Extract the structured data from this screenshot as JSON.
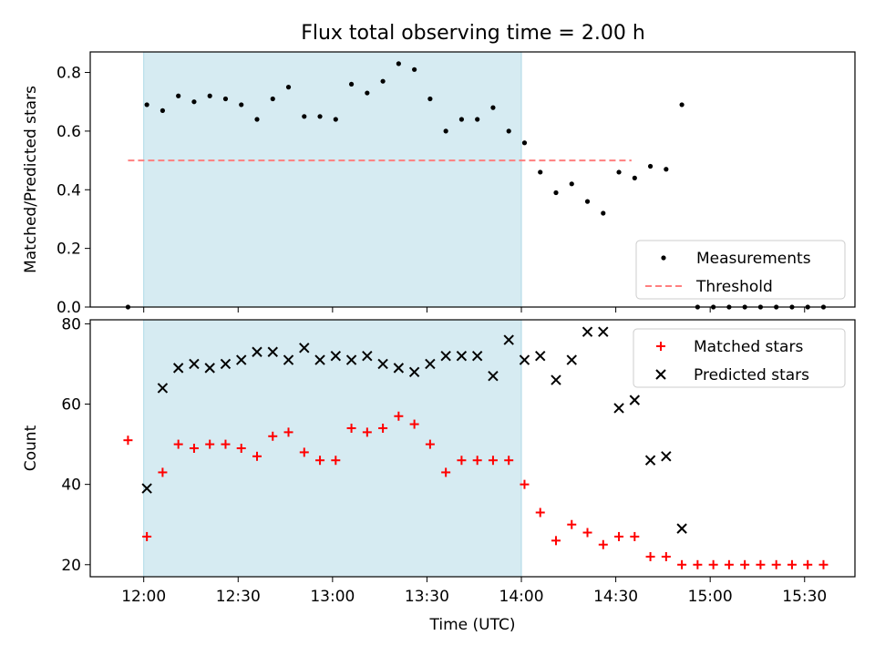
{
  "figure": {
    "title": "Flux total observing time = 2.00 h"
  },
  "colors": {
    "shade": "#add8e6",
    "threshold": "#ff7f7f",
    "measurement": "#000000",
    "matched": "#ff0000",
    "predicted": "#000000"
  },
  "chart_data": [
    {
      "type": "scatter",
      "title": "Flux total observing time = 2.00 h",
      "xlabel": "",
      "ylabel": "Matched/Predicted stars",
      "xlim": [
        "11:43",
        "15:46"
      ],
      "ylim": [
        0,
        0.87
      ],
      "yticks": [
        0.0,
        0.2,
        0.4,
        0.6,
        0.8
      ],
      "ytick_labels": [
        "0.0",
        "0.2",
        "0.4",
        "0.6",
        "0.8"
      ],
      "shaded_interval": [
        "12:00",
        "14:00"
      ],
      "legend_position": "bottom-right",
      "threshold": {
        "name": "Threshold",
        "y": 0.5,
        "x": [
          "11:55",
          "14:35"
        ],
        "style": "dashed"
      },
      "series": [
        {
          "name": "Measurements",
          "marker": "dot",
          "points": [
            [
              "11:55",
              0.0
            ],
            [
              "12:01",
              0.69
            ],
            [
              "12:06",
              0.67
            ],
            [
              "12:11",
              0.72
            ],
            [
              "12:16",
              0.7
            ],
            [
              "12:21",
              0.72
            ],
            [
              "12:26",
              0.71
            ],
            [
              "12:31",
              0.69
            ],
            [
              "12:36",
              0.64
            ],
            [
              "12:41",
              0.71
            ],
            [
              "12:46",
              0.75
            ],
            [
              "12:51",
              0.65
            ],
            [
              "12:56",
              0.65
            ],
            [
              "13:01",
              0.64
            ],
            [
              "13:06",
              0.76
            ],
            [
              "13:11",
              0.73
            ],
            [
              "13:16",
              0.77
            ],
            [
              "13:21",
              0.83
            ],
            [
              "13:26",
              0.81
            ],
            [
              "13:31",
              0.71
            ],
            [
              "13:36",
              0.6
            ],
            [
              "13:41",
              0.64
            ],
            [
              "13:46",
              0.64
            ],
            [
              "13:51",
              0.68
            ],
            [
              "13:56",
              0.6
            ],
            [
              "14:01",
              0.56
            ],
            [
              "14:06",
              0.46
            ],
            [
              "14:11",
              0.39
            ],
            [
              "14:16",
              0.42
            ],
            [
              "14:21",
              0.36
            ],
            [
              "14:26",
              0.32
            ],
            [
              "14:31",
              0.46
            ],
            [
              "14:36",
              0.44
            ],
            [
              "14:41",
              0.48
            ],
            [
              "14:46",
              0.47
            ],
            [
              "14:51",
              0.69
            ],
            [
              "14:56",
              0.0
            ],
            [
              "15:01",
              0.0
            ],
            [
              "15:06",
              0.0
            ],
            [
              "15:11",
              0.0
            ],
            [
              "15:16",
              0.0
            ],
            [
              "15:21",
              0.0
            ],
            [
              "15:26",
              0.0
            ],
            [
              "15:31",
              0.0
            ],
            [
              "15:36",
              0.0
            ]
          ]
        }
      ]
    },
    {
      "type": "scatter",
      "title": "",
      "xlabel": "Time (UTC)",
      "ylabel": "Count",
      "xlim": [
        "11:43",
        "15:46"
      ],
      "ylim": [
        17,
        81
      ],
      "yticks": [
        20,
        40,
        60,
        80
      ],
      "ytick_labels": [
        "20",
        "40",
        "60",
        "80"
      ],
      "xticks": [
        "12:00",
        "12:30",
        "13:00",
        "13:30",
        "14:00",
        "14:30",
        "15:00",
        "15:30"
      ],
      "xtick_labels": [
        "12:00",
        "12:30",
        "13:00",
        "13:30",
        "14:00",
        "14:30",
        "15:00",
        "15:30"
      ],
      "shaded_interval": [
        "12:00",
        "14:00"
      ],
      "legend_position": "top-right",
      "series": [
        {
          "name": "Matched stars",
          "marker": "plus",
          "points": [
            [
              "11:55",
              51
            ],
            [
              "12:01",
              27
            ],
            [
              "12:06",
              43
            ],
            [
              "12:11",
              50
            ],
            [
              "12:16",
              49
            ],
            [
              "12:21",
              50
            ],
            [
              "12:26",
              50
            ],
            [
              "12:31",
              49
            ],
            [
              "12:36",
              47
            ],
            [
              "12:41",
              52
            ],
            [
              "12:46",
              53
            ],
            [
              "12:51",
              48
            ],
            [
              "12:56",
              46
            ],
            [
              "13:01",
              46
            ],
            [
              "13:06",
              54
            ],
            [
              "13:11",
              53
            ],
            [
              "13:16",
              54
            ],
            [
              "13:21",
              57
            ],
            [
              "13:26",
              55
            ],
            [
              "13:31",
              50
            ],
            [
              "13:36",
              43
            ],
            [
              "13:41",
              46
            ],
            [
              "13:46",
              46
            ],
            [
              "13:51",
              46
            ],
            [
              "13:56",
              46
            ],
            [
              "14:01",
              40
            ],
            [
              "14:06",
              33
            ],
            [
              "14:11",
              26
            ],
            [
              "14:16",
              30
            ],
            [
              "14:21",
              28
            ],
            [
              "14:26",
              25
            ],
            [
              "14:31",
              27
            ],
            [
              "14:36",
              27
            ],
            [
              "14:41",
              22
            ],
            [
              "14:46",
              22
            ],
            [
              "14:51",
              20
            ],
            [
              "14:56",
              20
            ],
            [
              "15:01",
              20
            ],
            [
              "15:06",
              20
            ],
            [
              "15:11",
              20
            ],
            [
              "15:16",
              20
            ],
            [
              "15:21",
              20
            ],
            [
              "15:26",
              20
            ],
            [
              "15:31",
              20
            ],
            [
              "15:36",
              20
            ]
          ]
        },
        {
          "name": "Predicted stars",
          "marker": "x",
          "points": [
            [
              "12:01",
              39
            ],
            [
              "12:06",
              64
            ],
            [
              "12:11",
              69
            ],
            [
              "12:16",
              70
            ],
            [
              "12:21",
              69
            ],
            [
              "12:26",
              70
            ],
            [
              "12:31",
              71
            ],
            [
              "12:36",
              73
            ],
            [
              "12:41",
              73
            ],
            [
              "12:46",
              71
            ],
            [
              "12:51",
              74
            ],
            [
              "12:56",
              71
            ],
            [
              "13:01",
              72
            ],
            [
              "13:06",
              71
            ],
            [
              "13:11",
              72
            ],
            [
              "13:16",
              70
            ],
            [
              "13:21",
              69
            ],
            [
              "13:26",
              68
            ],
            [
              "13:31",
              70
            ],
            [
              "13:36",
              72
            ],
            [
              "13:41",
              72
            ],
            [
              "13:46",
              72
            ],
            [
              "13:51",
              67
            ],
            [
              "13:56",
              76
            ],
            [
              "14:01",
              71
            ],
            [
              "14:06",
              72
            ],
            [
              "14:11",
              66
            ],
            [
              "14:16",
              71
            ],
            [
              "14:21",
              78
            ],
            [
              "14:26",
              78
            ],
            [
              "14:31",
              59
            ],
            [
              "14:36",
              61
            ],
            [
              "14:41",
              46
            ],
            [
              "14:46",
              47
            ],
            [
              "14:51",
              29
            ]
          ]
        }
      ]
    }
  ]
}
